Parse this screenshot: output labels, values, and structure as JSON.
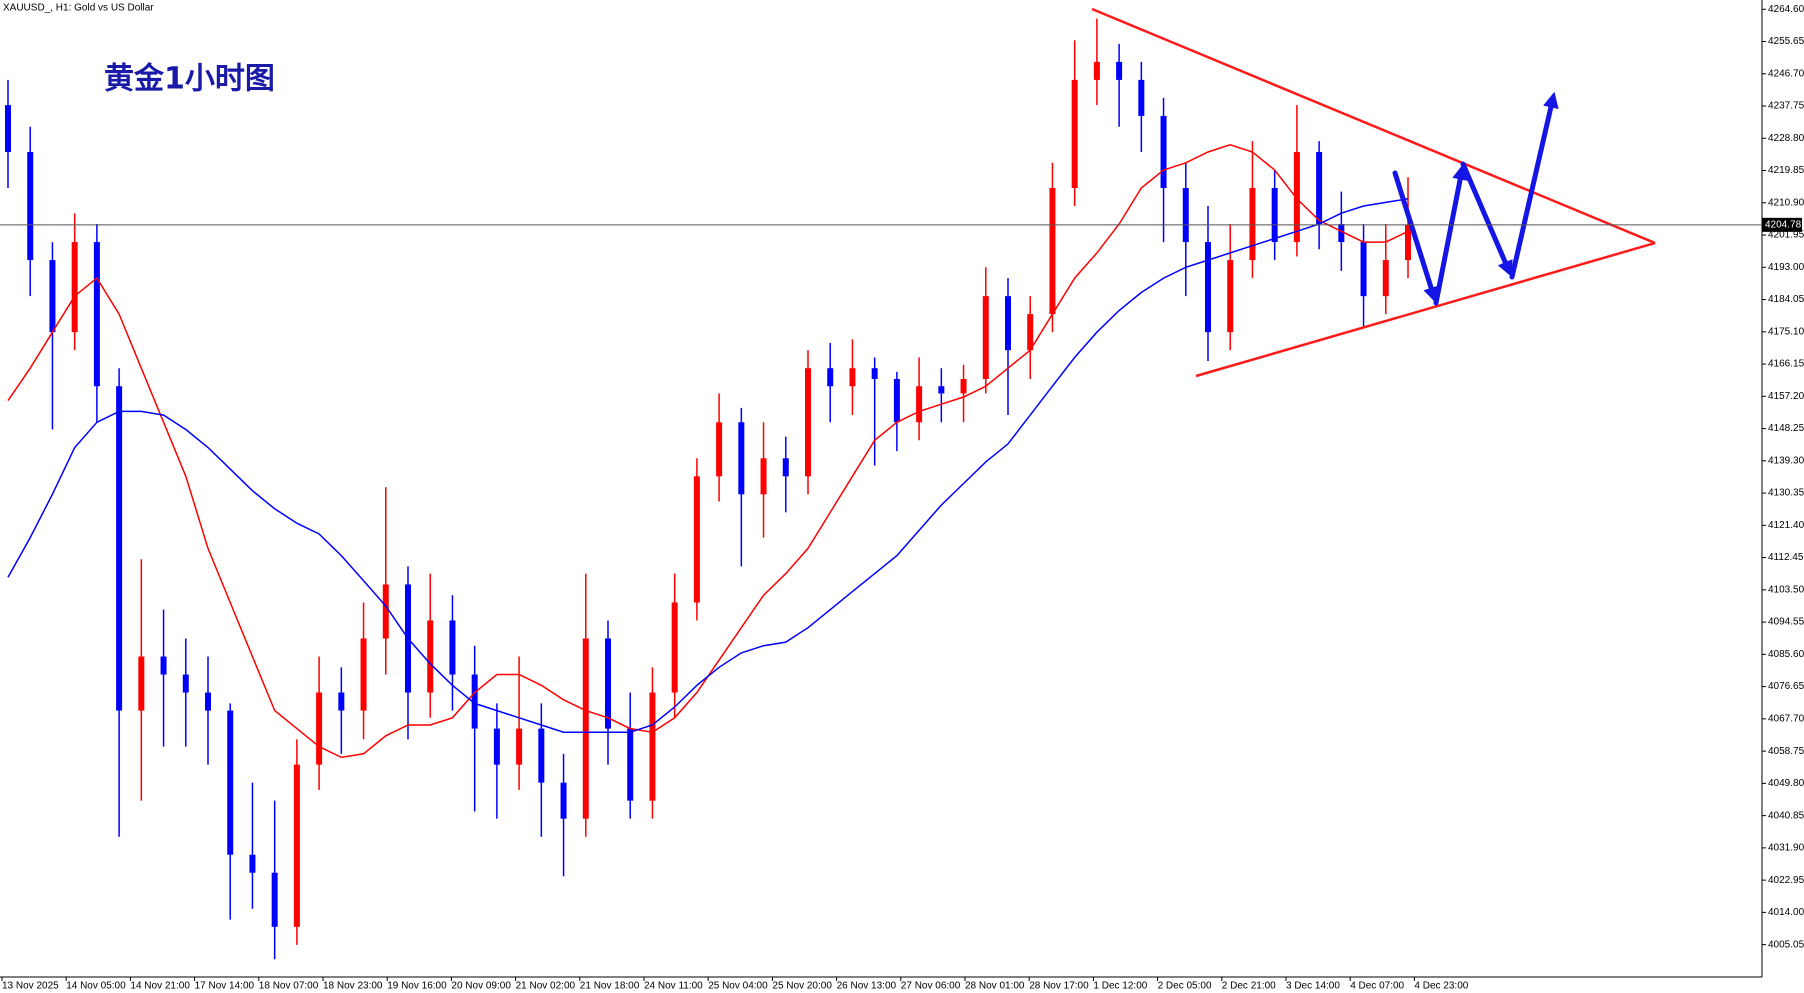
{
  "chart_data": {
    "type": "candlestick",
    "title": "XAUUSD_, H1:  Gold vs US Dollar",
    "annotation": "黄金1小时图",
    "up_color": "#ff0000",
    "down_color": "#0000ff",
    "ylim": [
      3996.07,
      4267.17
    ],
    "yticks": [
      {
        "value": 4264.6,
        "label": "4264.60"
      },
      4255.65,
      {
        "value": 4246.7,
        "label": "4246.70"
      },
      4237.75,
      {
        "value": 4228.8,
        "label": "4228.80"
      },
      4219.85,
      {
        "value": 4210.9,
        "label": "4210.90"
      },
      4201.95,
      {
        "value": 4193,
        "label": "4193.00"
      },
      4184.05,
      {
        "value": 4175.1,
        "label": "4175.10"
      },
      4166.15,
      {
        "value": 4157.2,
        "label": "4157.20"
      },
      4148.25,
      {
        "value": 4139.3,
        "label": "4139.30"
      },
      4130.35,
      {
        "value": 4121.4,
        "label": "4121.40"
      },
      4112.45,
      {
        "value": 4103.5,
        "label": "4103.50"
      },
      4094.55,
      {
        "value": 4085.6,
        "label": "4085.60"
      },
      4076.65,
      {
        "value": 4067.7,
        "label": "4067.70"
      },
      4058.75,
      {
        "value": 4049.8,
        "label": "4049.80"
      },
      4040.85,
      {
        "value": 4031.9,
        "label": "4031.90"
      },
      4022.95,
      {
        "value": 4014,
        "label": "4014.00"
      },
      4005.05
    ],
    "xtick_labels": [
      "13 Nov 2025",
      "14 Nov 05:00",
      "14 Nov 21:00",
      "17 Nov 14:00",
      "18 Nov 07:00",
      "18 Nov 23:00",
      "19 Nov 16:00",
      "20 Nov 09:00",
      "21 Nov 02:00",
      "21 Nov 18:00",
      "24 Nov 11:00",
      "25 Nov 04:00",
      "25 Nov 20:00",
      "26 Nov 13:00",
      "27 Nov 06:00",
      "28 Nov 01:00",
      "28 Nov 17:00",
      "1 Dec 12:00",
      "2 Dec 05:00",
      "2 Dec 21:00",
      "3 Dec 14:00",
      "4 Dec 07:00",
      "4 Dec 23:00"
    ],
    "last_price": 4204.78,
    "open": [
      4238,
      4225,
      4195,
      4175,
      4200,
      4160,
      4070,
      4085,
      4080,
      4075,
      4070,
      4030,
      4025,
      4010,
      4055,
      4075,
      4070,
      4090,
      4105,
      4075,
      4095,
      4080,
      4065,
      4055,
      4065,
      4050,
      4040,
      4090,
      4065,
      4045,
      4075,
      4100,
      4135,
      4150,
      4130,
      4140,
      4135,
      4165,
      4160,
      4165,
      4162,
      4150,
      4160,
      4158,
      4162,
      4185,
      4170,
      4180,
      4215,
      4245,
      4250,
      4245,
      4235,
      4215,
      4200,
      4175,
      4195,
      4215,
      4200,
      4225,
      4205,
      4200,
      4185,
      4195
    ],
    "high": [
      4245,
      4232,
      4200,
      4208,
      4205,
      4165,
      4112,
      4098,
      4090,
      4085,
      4072,
      4050,
      4045,
      4062,
      4085,
      4082,
      4100,
      4132,
      4110,
      4108,
      4102,
      4088,
      4072,
      4085,
      4072,
      4058,
      4108,
      4095,
      4075,
      4082,
      4108,
      4140,
      4158,
      4154,
      4150,
      4146,
      4170,
      4172,
      4173,
      4168,
      4164,
      4168,
      4165,
      4166,
      4193,
      4190,
      4185,
      4222,
      4256,
      4262,
      4255,
      4250,
      4240,
      4222,
      4210,
      4205,
      4228,
      4220,
      4238,
      4228,
      4214,
      4205,
      4205,
      4218
    ],
    "low": [
      4215,
      4185,
      4148,
      4170,
      4150,
      4035,
      4045,
      4060,
      4060,
      4055,
      4012,
      4015,
      4001,
      4005,
      4048,
      4058,
      4062,
      4080,
      4062,
      4068,
      4070,
      4042,
      4040,
      4048,
      4035,
      4024,
      4035,
      4055,
      4040,
      4040,
      4068,
      4095,
      4128,
      4110,
      4118,
      4125,
      4130,
      4150,
      4152,
      4138,
      4142,
      4145,
      4150,
      4150,
      4158,
      4152,
      4162,
      4175,
      4210,
      4238,
      4232,
      4225,
      4200,
      4185,
      4167,
      4170,
      4190,
      4195,
      4196,
      4198,
      4192,
      4176,
      4180,
      4190
    ],
    "close": [
      4225,
      4195,
      4175,
      4200,
      4160,
      4070,
      4085,
      4080,
      4075,
      4070,
      4030,
      4025,
      4010,
      4055,
      4075,
      4070,
      4090,
      4105,
      4075,
      4095,
      4080,
      4065,
      4055,
      4065,
      4050,
      4040,
      4090,
      4065,
      4045,
      4075,
      4100,
      4135,
      4150,
      4130,
      4140,
      4135,
      4165,
      4160,
      4165,
      4162,
      4150,
      4160,
      4158,
      4162,
      4185,
      4170,
      4180,
      4215,
      4245,
      4250,
      4245,
      4235,
      4215,
      4200,
      4175,
      4195,
      4215,
      4200,
      4225,
      4205,
      4200,
      4185,
      4195,
      4204.78
    ],
    "moving_averages": [
      {
        "color": "#ff0000",
        "values": [
          4156,
          4165,
          4175,
          4185,
          4190,
          4180,
          4165,
          4150,
          4135,
          4115,
          4100,
          4085,
          4070,
          4065,
          4060,
          4057,
          4058,
          4063,
          4066,
          4066,
          4068,
          4075,
          4080,
          4080,
          4077,
          4073,
          4070,
          4068,
          4065,
          4064,
          4068,
          4075,
          4084,
          4093,
          4102,
          4108,
          4115,
          4125,
          4135,
          4145,
          4150,
          4153,
          4155,
          4157,
          4160,
          4165,
          4170,
          4180,
          4190,
          4197,
          4205,
          4215,
          4220,
          4222,
          4225,
          4227,
          4225,
          4220,
          4212,
          4206,
          4203,
          4200,
          4200,
          4203
        ]
      },
      {
        "color": "#0000ff",
        "values": [
          4107,
          4118,
          4130,
          4143,
          4150,
          4153,
          4153,
          4152,
          4148,
          4143,
          4137,
          4131,
          4126,
          4122,
          4119,
          4113,
          4106,
          4099,
          4090,
          4083,
          4077,
          4072,
          4070,
          4068,
          4066,
          4064,
          4064,
          4064,
          4064,
          4066,
          4071,
          4077,
          4082,
          4086,
          4088,
          4089,
          4093,
          4098,
          4103,
          4108,
          4113,
          4120,
          4127,
          4133,
          4139,
          4144,
          4152,
          4160,
          4168,
          4175,
          4181,
          4186,
          4190,
          4193,
          4195,
          4197,
          4199,
          4201,
          4203,
          4205,
          4208,
          4210,
          4211,
          4212
        ]
      }
    ]
  }
}
